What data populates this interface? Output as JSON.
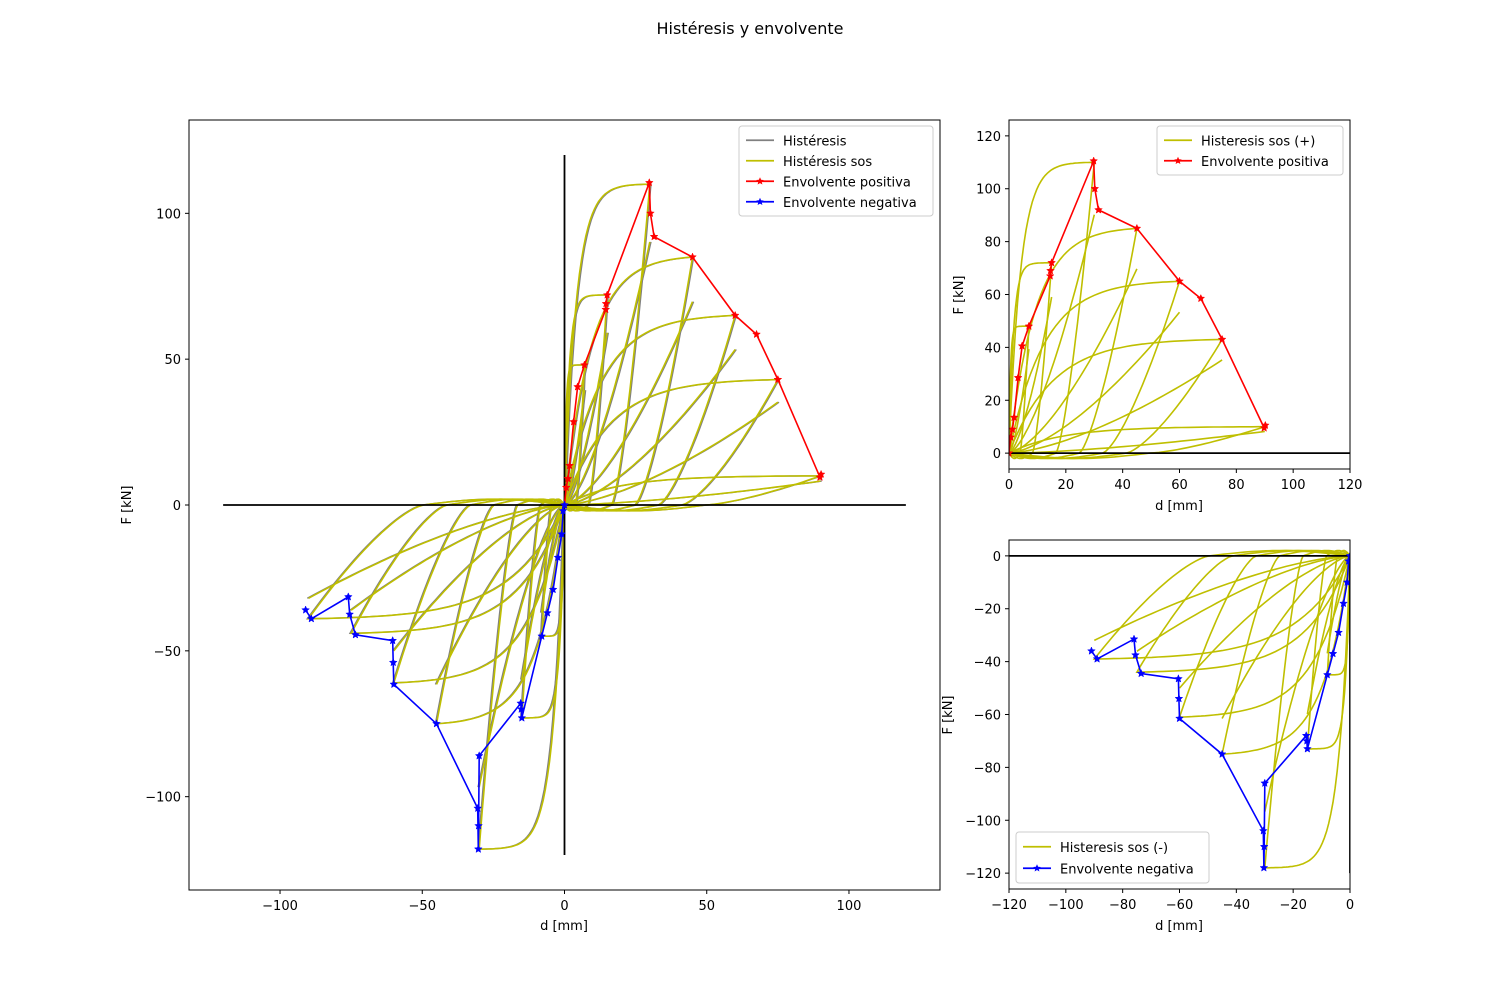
{
  "figure": {
    "title": "Histéresis y envolvente"
  },
  "colors": {
    "histeresis": "#808080",
    "histeresis_sos": "#bfbf00",
    "env_pos": "#ff0000",
    "env_neg": "#0000ff",
    "axis_line": "#000000"
  },
  "chart_data": [
    {
      "type": "line",
      "id": "main",
      "xlabel": "d [mm]",
      "ylabel": "F [kN]",
      "xlim": [
        -132,
        132
      ],
      "ylim": [
        -132,
        132
      ],
      "xticks": [
        -100,
        -50,
        0,
        50,
        100
      ],
      "yticks": [
        -100,
        -50,
        0,
        50,
        100
      ],
      "xtick_labels": [
        "−100",
        "−50",
        "0",
        "50",
        "100"
      ],
      "ytick_labels": [
        "−100",
        "−50",
        "0",
        "50",
        "100"
      ],
      "legend": {
        "position": "top-right",
        "entries": [
          {
            "label": "Histéresis",
            "series": "histeresis"
          },
          {
            "label": "Histéresis sos",
            "series": "histeresis_sos"
          },
          {
            "label": "Envolvente positiva",
            "series": "env_pos"
          },
          {
            "label": "Envolvente negativa",
            "series": "env_neg"
          }
        ]
      },
      "reference_lines": [
        {
          "x": [
            -120,
            120
          ],
          "y": [
            0,
            0
          ]
        },
        {
          "x": [
            0,
            0
          ],
          "y": [
            -120,
            120
          ]
        }
      ]
    },
    {
      "type": "line",
      "id": "pos",
      "xlabel": "d [mm]",
      "ylabel": "F [kN]",
      "xlim": [
        0,
        120
      ],
      "ylim": [
        -6,
        126
      ],
      "xticks": [
        0,
        20,
        40,
        60,
        80,
        100,
        120
      ],
      "yticks": [
        0,
        20,
        40,
        60,
        80,
        100,
        120
      ],
      "xtick_labels": [
        "0",
        "20",
        "40",
        "60",
        "80",
        "100",
        "120"
      ],
      "ytick_labels": [
        "0",
        "20",
        "40",
        "60",
        "80",
        "100",
        "120"
      ],
      "legend": {
        "position": "top-right",
        "entries": [
          {
            "label": "Histeresis sos (+)",
            "series": "histeresis_sos"
          },
          {
            "label": "Envolvente positiva",
            "series": "env_pos"
          }
        ]
      },
      "reference_lines": [
        {
          "x": [
            0,
            120
          ],
          "y": [
            0,
            0
          ]
        }
      ]
    },
    {
      "type": "line",
      "id": "neg",
      "xlabel": "d [mm]",
      "ylabel": "F [kN]",
      "xlim": [
        -120,
        0
      ],
      "ylim": [
        -126,
        6
      ],
      "xticks": [
        -120,
        -100,
        -80,
        -60,
        -40,
        -20,
        0
      ],
      "yticks": [
        0,
        -20,
        -40,
        -60,
        -80,
        -100,
        -120
      ],
      "xtick_labels": [
        "−120",
        "−100",
        "−80",
        "−60",
        "−40",
        "−20",
        "0"
      ],
      "ytick_labels": [
        "0",
        "−20",
        "−40",
        "−60",
        "−80",
        "−100",
        "−120"
      ],
      "legend": {
        "position": "bottom-left",
        "entries": [
          {
            "label": "Histeresis sos (-)",
            "series": "histeresis_sos"
          },
          {
            "label": "Envolvente negativa",
            "series": "env_neg"
          }
        ]
      },
      "reference_lines": [
        {
          "x": [
            -120,
            0
          ],
          "y": [
            0,
            0
          ]
        },
        {
          "x": [
            0,
            0
          ],
          "y": [
            -120,
            0
          ]
        }
      ]
    }
  ],
  "series": {
    "env_pos": {
      "x": [
        0,
        0.6,
        1.2,
        1.8,
        3.2,
        4.6,
        7,
        14.5,
        14.6,
        15,
        29.8,
        30.2,
        31.5,
        45,
        60,
        67.5,
        75,
        89.8,
        90.2
      ],
      "y": [
        0,
        6,
        9,
        13.5,
        28.5,
        40.5,
        48,
        67,
        69,
        72,
        110.5,
        100,
        92,
        85,
        65,
        58.5,
        43,
        9.5,
        10.5
      ]
    },
    "env_neg": {
      "x": [
        0,
        -0.5,
        -1,
        -2.3,
        -4,
        -6,
        -8,
        -15,
        -15.2,
        -15.4,
        -30,
        -30.2,
        -30.3,
        -30.5,
        -45,
        -60,
        -60.2,
        -60.4,
        -73.5,
        -75.5,
        -76,
        -89,
        -91
      ],
      "y": [
        0,
        -2,
        -10,
        -18,
        -29,
        -37,
        -45,
        -73,
        -70,
        -68,
        -86,
        -110,
        -118,
        -104,
        -75,
        -61.5,
        -54,
        -46.5,
        -44.5,
        -37.5,
        -31.5,
        -39,
        -36
      ]
    },
    "histeresis_pos_loops": [
      {
        "amp": 7,
        "peak": 48
      },
      {
        "amp": 15,
        "peak": 72
      },
      {
        "amp": 30,
        "peak": 110
      },
      {
        "amp": 45,
        "peak": 85
      },
      {
        "amp": 60,
        "peak": 65
      },
      {
        "amp": 75,
        "peak": 43
      },
      {
        "amp": 90,
        "peak": 10
      }
    ],
    "histeresis_neg_loops": [
      {
        "amp": 8,
        "peak": 45
      },
      {
        "amp": 15,
        "peak": 73
      },
      {
        "amp": 30,
        "peak": 118
      },
      {
        "amp": 45,
        "peak": 75
      },
      {
        "amp": 60,
        "peak": 61
      },
      {
        "amp": 75,
        "peak": 44
      },
      {
        "amp": 90,
        "peak": 39
      }
    ]
  }
}
